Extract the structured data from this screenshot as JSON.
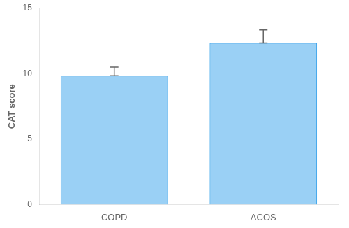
{
  "chart_data": {
    "type": "bar",
    "categories": [
      "COPD",
      "ACOS"
    ],
    "values": [
      9.85,
      12.35
    ],
    "errors_upper": [
      0.65,
      1.0
    ],
    "errors_lower": [
      0.0,
      0.0
    ],
    "ylabel": "CAT score",
    "ylim": [
      0,
      15
    ],
    "yticks": [
      0,
      5,
      10,
      15
    ],
    "grid": false
  }
}
